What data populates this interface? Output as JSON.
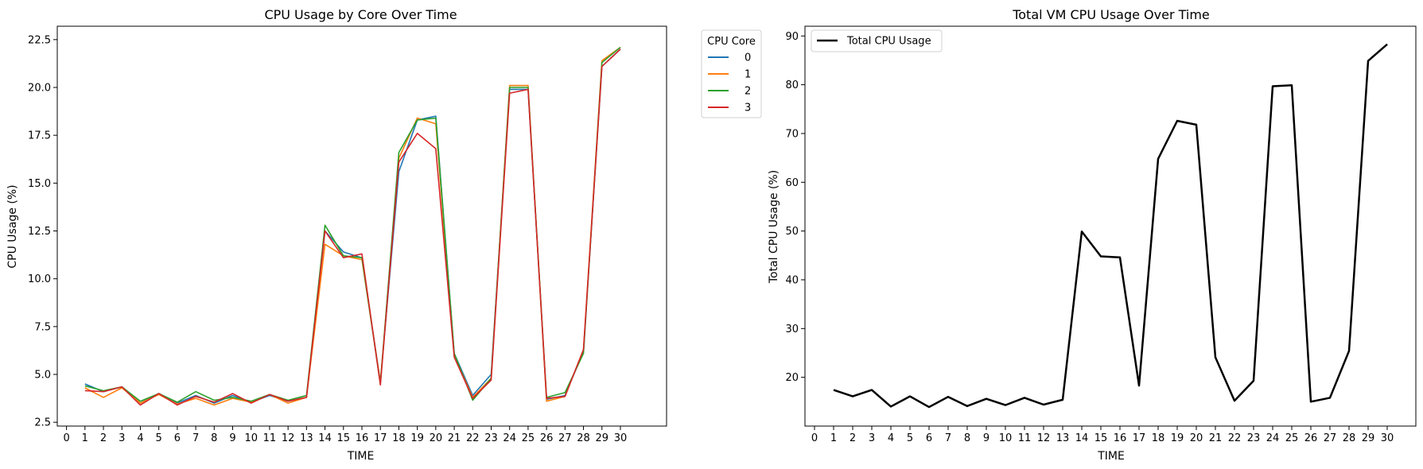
{
  "chart_data": [
    {
      "type": "line",
      "title": "CPU Usage by Core Over Time",
      "xlabel": "TIME",
      "ylabel": "CPU Usage (%)",
      "xlim": [
        -0.5,
        32.5
      ],
      "ylim": [
        2.3,
        23.2
      ],
      "x_ticks": [
        0,
        1,
        2,
        3,
        4,
        5,
        6,
        7,
        8,
        9,
        10,
        11,
        12,
        13,
        14,
        15,
        16,
        17,
        18,
        19,
        20,
        21,
        22,
        23,
        24,
        25,
        26,
        27,
        28,
        29,
        30
      ],
      "y_ticks": [
        2.5,
        5.0,
        7.5,
        10.0,
        12.5,
        15.0,
        17.5,
        20.0,
        22.5
      ],
      "y_tick_labels": [
        "2.5",
        "5.0",
        "7.5",
        "10.0",
        "12.5",
        "15.0",
        "17.5",
        "20.0",
        "22.5"
      ],
      "legend_title": "CPU Core",
      "legend_position": "outside-top-right",
      "grid": false,
      "x": [
        1,
        2,
        3,
        4,
        5,
        6,
        7,
        8,
        9,
        10,
        11,
        12,
        13,
        14,
        15,
        16,
        17,
        18,
        19,
        20,
        21,
        22,
        23,
        24,
        25,
        26,
        27,
        28,
        29,
        30
      ],
      "series": [
        {
          "name": "0",
          "color": "#1f77b4",
          "values": [
            4.5,
            4.1,
            4.35,
            3.5,
            4.0,
            3.5,
            3.9,
            3.5,
            3.9,
            3.55,
            3.9,
            3.6,
            3.8,
            12.5,
            11.4,
            11.1,
            4.6,
            15.6,
            18.3,
            18.5,
            6.1,
            3.9,
            5.0,
            19.9,
            19.9,
            3.7,
            3.9,
            6.2,
            21.1,
            22.0
          ]
        },
        {
          "name": "1",
          "color": "#ff7f0e",
          "values": [
            4.3,
            3.8,
            4.3,
            3.5,
            3.95,
            3.45,
            3.75,
            3.4,
            3.75,
            3.55,
            3.95,
            3.5,
            3.8,
            11.8,
            11.2,
            11.0,
            4.6,
            16.3,
            18.4,
            18.1,
            6.0,
            3.8,
            4.8,
            20.1,
            20.1,
            3.6,
            3.85,
            6.3,
            21.4,
            22.1
          ]
        },
        {
          "name": "2",
          "color": "#2ca02c",
          "values": [
            4.4,
            4.15,
            4.35,
            3.6,
            4.0,
            3.55,
            4.1,
            3.65,
            3.8,
            3.6,
            3.95,
            3.65,
            3.9,
            12.8,
            11.2,
            11.1,
            4.5,
            16.6,
            18.3,
            18.4,
            6.1,
            3.65,
            4.8,
            20.0,
            20.0,
            3.8,
            4.05,
            6.1,
            21.3,
            22.1
          ]
        },
        {
          "name": "3",
          "color": "#d62728",
          "values": [
            4.15,
            4.1,
            4.35,
            3.4,
            4.0,
            3.4,
            3.85,
            3.55,
            4.0,
            3.5,
            3.95,
            3.6,
            3.8,
            12.5,
            11.1,
            11.3,
            4.45,
            16.1,
            17.6,
            16.8,
            5.9,
            3.75,
            4.7,
            19.7,
            19.9,
            3.75,
            3.85,
            6.3,
            21.1,
            22.0
          ]
        }
      ]
    },
    {
      "type": "line",
      "title": "Total VM CPU Usage Over Time",
      "xlabel": "TIME",
      "ylabel": "Total CPU Usage (%)",
      "xlim": [
        -0.5,
        31.5
      ],
      "ylim": [
        10.0,
        92.0
      ],
      "x_ticks": [
        0,
        1,
        2,
        3,
        4,
        5,
        6,
        7,
        8,
        9,
        10,
        11,
        12,
        13,
        14,
        15,
        16,
        17,
        18,
        19,
        20,
        21,
        22,
        23,
        24,
        25,
        26,
        27,
        28,
        29,
        30
      ],
      "y_ticks": [
        20,
        30,
        40,
        50,
        60,
        70,
        80,
        90
      ],
      "y_tick_labels": [
        "20",
        "30",
        "40",
        "50",
        "60",
        "70",
        "80",
        "90"
      ],
      "legend_position": "top-left",
      "grid": false,
      "x": [
        1,
        2,
        3,
        4,
        5,
        6,
        7,
        8,
        9,
        10,
        11,
        12,
        13,
        14,
        15,
        16,
        17,
        18,
        19,
        20,
        21,
        22,
        23,
        24,
        25,
        26,
        27,
        28,
        29,
        30
      ],
      "series": [
        {
          "name": "Total CPU Usage",
          "color": "#000000",
          "values": [
            17.4,
            16.1,
            17.4,
            14.0,
            16.1,
            13.9,
            16.0,
            14.1,
            15.6,
            14.3,
            15.8,
            14.4,
            15.4,
            49.9,
            44.8,
            44.6,
            18.3,
            64.8,
            72.6,
            71.8,
            24.1,
            15.2,
            19.3,
            79.7,
            79.9,
            15.0,
            15.8,
            25.4,
            84.9,
            88.3
          ]
        }
      ]
    }
  ]
}
